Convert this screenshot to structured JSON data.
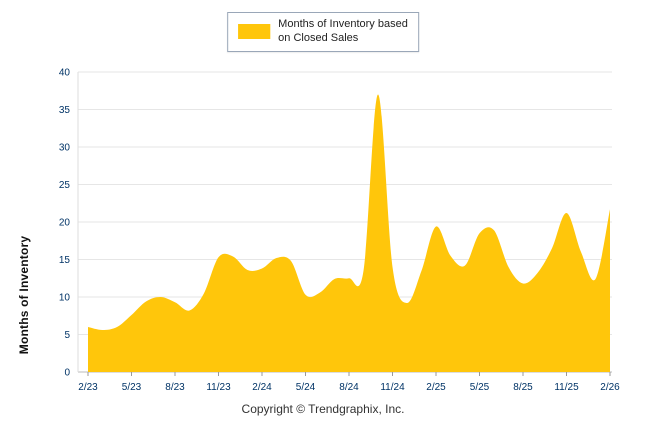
{
  "legend": {
    "label": "Months of Inventory based\non Closed Sales"
  },
  "footer": {
    "copyright": "Copyright © Trendgraphix, Inc."
  },
  "colors": {
    "area": "#FFC60B",
    "tick_label": "#003366",
    "gridline": "#e6e6e6",
    "axis_line": "#bbbbbb"
  },
  "chart_data": {
    "type": "area",
    "title": "",
    "xlabel": "",
    "ylabel": "Months of Inventory",
    "ylim": [
      0,
      40
    ],
    "y_tick_step": 5,
    "grid": true,
    "legend_position": "top-center",
    "series_name": "Months of Inventory based on Closed Sales",
    "x": [
      "2/23",
      "3/23",
      "4/23",
      "5/23",
      "6/23",
      "7/23",
      "8/23",
      "9/23",
      "10/23",
      "11/23",
      "12/23",
      "1/24",
      "2/24",
      "3/24",
      "4/24",
      "5/24",
      "6/24",
      "7/24",
      "8/24",
      "9/24",
      "10/24",
      "11/24",
      "12/24",
      "1/25",
      "2/25",
      "3/25",
      "4/25",
      "5/25",
      "6/25",
      "7/25",
      "8/25",
      "9/25",
      "10/25",
      "11/25",
      "12/25",
      "1/26",
      "2/26"
    ],
    "x_ticks": [
      "2/23",
      "5/23",
      "8/23",
      "11/23",
      "2/24",
      "5/24",
      "8/24",
      "11/24",
      "2/25",
      "5/25",
      "8/25",
      "11/25",
      "2/26"
    ],
    "values": [
      6.0,
      5.6,
      6.0,
      7.6,
      9.4,
      10.0,
      9.3,
      8.2,
      10.5,
      15.3,
      15.4,
      13.6,
      13.8,
      15.2,
      14.8,
      10.3,
      10.6,
      12.4,
      12.5,
      13.5,
      37.0,
      14.0,
      9.2,
      13.5,
      19.4,
      15.5,
      14.2,
      18.5,
      18.9,
      14.0,
      11.8,
      13.2,
      16.5,
      21.2,
      16.0,
      12.4,
      21.7
    ]
  }
}
